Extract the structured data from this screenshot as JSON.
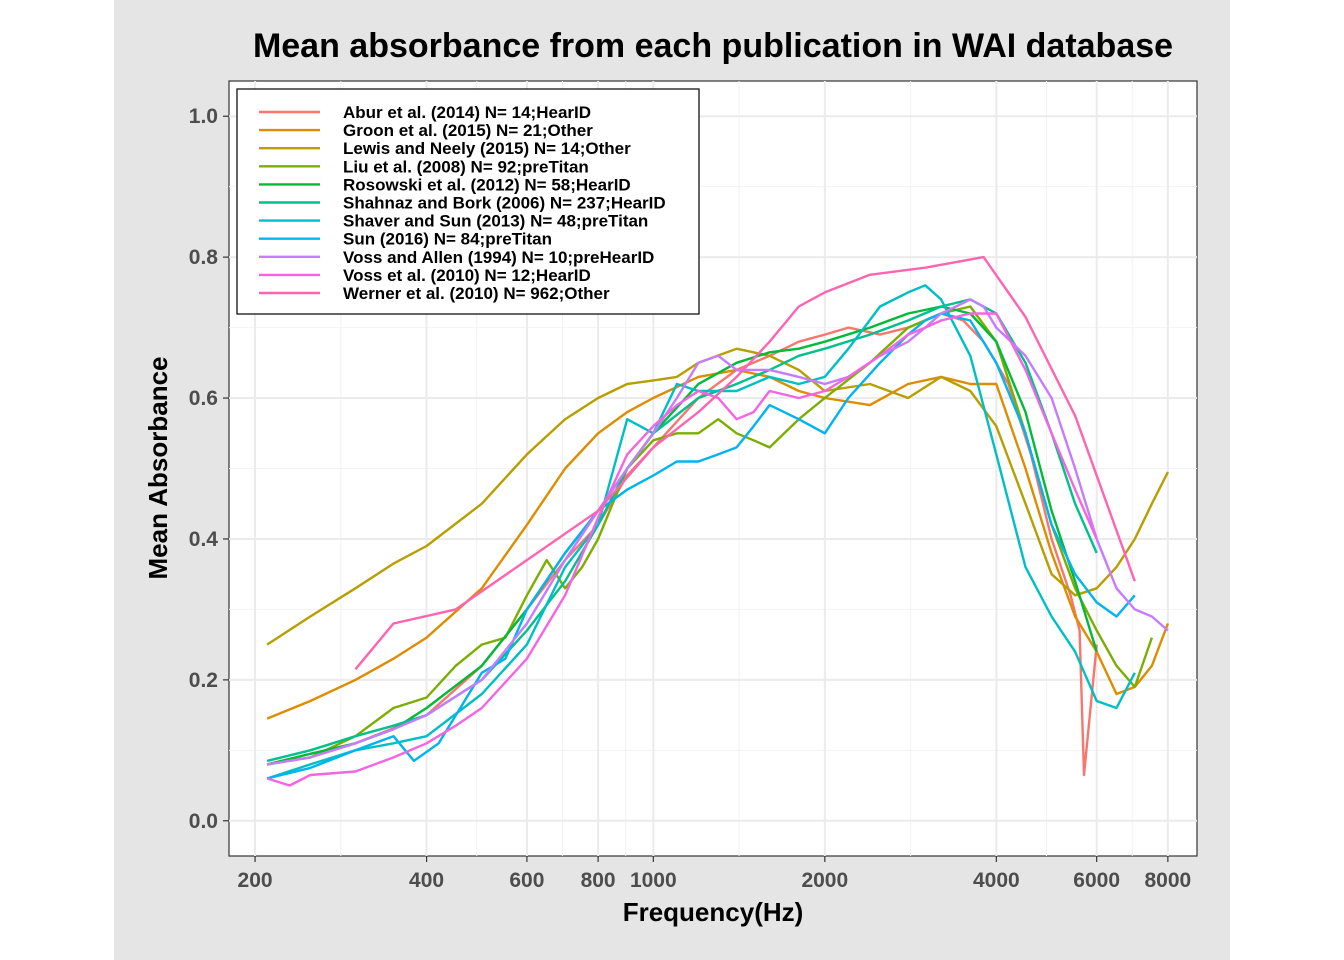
{
  "chart_data": {
    "type": "line",
    "title": "Mean absorbance from each publication in WAI database",
    "xlabel": "Frequency(Hz)",
    "ylabel": "Mean Absorbance",
    "x_scale": "log",
    "xlim": [
      180,
      9000
    ],
    "ylim": [
      -0.05,
      1.05
    ],
    "x_ticks": [
      200,
      400,
      600,
      800,
      1000,
      2000,
      4000,
      6000,
      8000
    ],
    "x_tick_labels": [
      "200",
      "400",
      "600",
      "800",
      "1000",
      "2000",
      "4000",
      "6000",
      "8000"
    ],
    "y_ticks": [
      0.0,
      0.2,
      0.4,
      0.6,
      0.8,
      1.0
    ],
    "y_tick_labels": [
      "0.0",
      "0.2",
      "0.4",
      "0.6",
      "0.8",
      "1.0"
    ],
    "grid": true,
    "legend_position": "top-left",
    "series": [
      {
        "name": "Abur et al. (2014) N= 14;HearID",
        "color": "#F8766D",
        "x": [
          210,
          250,
          300,
          400,
          500,
          600,
          700,
          800,
          900,
          1000,
          1200,
          1400,
          1600,
          1800,
          2000,
          2200,
          2500,
          2800,
          3000,
          3200,
          3500,
          3800,
          4200,
          4600,
          5000,
          5400,
          5600,
          5700,
          6000
        ],
        "y": [
          0.08,
          0.09,
          0.11,
          0.15,
          0.22,
          0.3,
          0.37,
          0.42,
          0.49,
          0.53,
          0.6,
          0.64,
          0.66,
          0.68,
          0.69,
          0.7,
          0.69,
          0.7,
          0.71,
          0.72,
          0.71,
          0.68,
          0.62,
          0.52,
          0.4,
          0.32,
          0.27,
          0.065,
          0.25
        ]
      },
      {
        "name": "Groon et al. (2015) N= 21;Other",
        "color": "#DE8C00",
        "x": [
          210,
          250,
          300,
          350,
          400,
          500,
          600,
          700,
          800,
          900,
          1000,
          1200,
          1400,
          1600,
          1800,
          2000,
          2400,
          2800,
          3200,
          3600,
          4000,
          4500,
          5000,
          5500,
          6000,
          6500,
          7000,
          7500,
          8000
        ],
        "y": [
          0.145,
          0.17,
          0.2,
          0.23,
          0.26,
          0.33,
          0.42,
          0.5,
          0.55,
          0.58,
          0.6,
          0.63,
          0.64,
          0.63,
          0.61,
          0.6,
          0.59,
          0.62,
          0.63,
          0.62,
          0.62,
          0.5,
          0.38,
          0.29,
          0.24,
          0.18,
          0.19,
          0.22,
          0.28
        ]
      },
      {
        "name": "Lewis and Neely (2015) N= 14;Other",
        "color": "#B79F00",
        "x": [
          210,
          250,
          300,
          350,
          400,
          500,
          600,
          700,
          800,
          900,
          1000,
          1100,
          1200,
          1400,
          1600,
          1800,
          2000,
          2400,
          2800,
          3200,
          3600,
          4000,
          4500,
          5000,
          5500,
          6000,
          6500,
          7000,
          7500,
          8000
        ],
        "y": [
          0.25,
          0.29,
          0.33,
          0.365,
          0.39,
          0.45,
          0.52,
          0.57,
          0.6,
          0.62,
          0.625,
          0.63,
          0.65,
          0.67,
          0.66,
          0.64,
          0.61,
          0.62,
          0.6,
          0.63,
          0.61,
          0.56,
          0.45,
          0.35,
          0.32,
          0.33,
          0.36,
          0.4,
          0.45,
          0.495
        ]
      },
      {
        "name": "Liu et al. (2008) N= 92;preTitan",
        "color": "#7CAE00",
        "x": [
          210,
          250,
          300,
          350,
          400,
          450,
          500,
          550,
          600,
          650,
          700,
          750,
          800,
          900,
          1000,
          1100,
          1200,
          1300,
          1400,
          1500,
          1600,
          1800,
          2000,
          2400,
          2800,
          3200,
          3600,
          4000,
          4500,
          5000,
          5500,
          6000,
          6500,
          7000,
          7500
        ],
        "y": [
          0.08,
          0.09,
          0.12,
          0.16,
          0.175,
          0.22,
          0.25,
          0.26,
          0.32,
          0.37,
          0.33,
          0.36,
          0.4,
          0.5,
          0.54,
          0.55,
          0.55,
          0.57,
          0.55,
          0.54,
          0.53,
          0.57,
          0.6,
          0.65,
          0.7,
          0.72,
          0.73,
          0.68,
          0.55,
          0.42,
          0.33,
          0.27,
          0.22,
          0.19,
          0.26
        ]
      },
      {
        "name": "Rosowski et al. (2012) N= 58;HearID",
        "color": "#00BA38",
        "x": [
          210,
          250,
          300,
          350,
          400,
          500,
          600,
          700,
          800,
          900,
          1000,
          1200,
          1400,
          1600,
          1800,
          2000,
          2400,
          2800,
          3200,
          3600,
          4000,
          4500,
          5000,
          5500,
          6000
        ],
        "y": [
          0.08,
          0.095,
          0.11,
          0.13,
          0.16,
          0.22,
          0.3,
          0.38,
          0.44,
          0.5,
          0.55,
          0.62,
          0.65,
          0.665,
          0.67,
          0.68,
          0.7,
          0.72,
          0.73,
          0.72,
          0.68,
          0.58,
          0.44,
          0.34,
          0.24
        ]
      },
      {
        "name": "Shahnaz and Bork (2006) N= 237;HearID",
        "color": "#00C08B",
        "x": [
          210,
          250,
          300,
          350,
          400,
          500,
          600,
          700,
          800,
          900,
          1000,
          1200,
          1400,
          1600,
          1800,
          2000,
          2400,
          2800,
          3200,
          3600,
          4000,
          4500,
          5000,
          5500,
          6000
        ],
        "y": [
          0.085,
          0.1,
          0.12,
          0.135,
          0.15,
          0.2,
          0.27,
          0.34,
          0.42,
          0.5,
          0.55,
          0.6,
          0.62,
          0.64,
          0.66,
          0.67,
          0.69,
          0.71,
          0.73,
          0.74,
          0.72,
          0.65,
          0.55,
          0.45,
          0.38
        ]
      },
      {
        "name": "Shaver and Sun (2013) N= 48;preTitan",
        "color": "#00BFC4",
        "x": [
          210,
          250,
          300,
          350,
          400,
          500,
          600,
          700,
          800,
          900,
          1000,
          1100,
          1200,
          1400,
          1600,
          1800,
          2000,
          2200,
          2500,
          2800,
          3000,
          3200,
          3600,
          4000,
          4500,
          5000,
          5500,
          6000,
          6500,
          7000
        ],
        "y": [
          0.06,
          0.08,
          0.1,
          0.11,
          0.12,
          0.18,
          0.25,
          0.36,
          0.42,
          0.57,
          0.55,
          0.62,
          0.61,
          0.61,
          0.63,
          0.62,
          0.63,
          0.67,
          0.73,
          0.75,
          0.76,
          0.74,
          0.66,
          0.52,
          0.36,
          0.29,
          0.24,
          0.17,
          0.16,
          0.21
        ]
      },
      {
        "name": "Sun (2016) N= 84;preTitan",
        "color": "#00B4F0",
        "x": [
          210,
          250,
          300,
          350,
          380,
          420,
          500,
          550,
          600,
          700,
          800,
          900,
          1000,
          1100,
          1200,
          1300,
          1400,
          1500,
          1600,
          1800,
          2000,
          2200,
          2500,
          2800,
          3000,
          3200,
          3600,
          4000,
          4500,
          5000,
          5500,
          6000,
          6500,
          7000
        ],
        "y": [
          0.06,
          0.075,
          0.1,
          0.12,
          0.085,
          0.11,
          0.21,
          0.23,
          0.3,
          0.38,
          0.44,
          0.47,
          0.49,
          0.51,
          0.51,
          0.52,
          0.53,
          0.56,
          0.59,
          0.57,
          0.55,
          0.6,
          0.65,
          0.69,
          0.71,
          0.72,
          0.71,
          0.65,
          0.55,
          0.42,
          0.35,
          0.31,
          0.29,
          0.32
        ]
      },
      {
        "name": "Voss and Allen (1994) N= 10;preHearID",
        "color": "#C77CFF",
        "x": [
          210,
          250,
          300,
          350,
          400,
          500,
          600,
          700,
          800,
          900,
          1000,
          1100,
          1200,
          1300,
          1400,
          1600,
          1800,
          2000,
          2200,
          2500,
          2800,
          3000,
          3200,
          3400,
          3600,
          3800,
          4000,
          4500,
          5000,
          5500,
          6000,
          6500,
          7000,
          7500,
          8000
        ],
        "y": [
          0.08,
          0.09,
          0.11,
          0.13,
          0.15,
          0.2,
          0.28,
          0.37,
          0.44,
          0.5,
          0.55,
          0.6,
          0.65,
          0.66,
          0.64,
          0.64,
          0.63,
          0.62,
          0.63,
          0.66,
          0.68,
          0.7,
          0.72,
          0.73,
          0.74,
          0.73,
          0.7,
          0.66,
          0.6,
          0.5,
          0.4,
          0.33,
          0.3,
          0.29,
          0.27
        ]
      },
      {
        "name": "Voss et al. (2010) N= 12;HearID",
        "color": "#F564E3",
        "x": [
          210,
          230,
          250,
          300,
          350,
          400,
          450,
          500,
          600,
          700,
          800,
          900,
          1000,
          1100,
          1200,
          1300,
          1400,
          1500,
          1600,
          1800,
          2000,
          2200,
          2500,
          2800,
          3000,
          3200,
          3600,
          4000,
          4500,
          5000,
          5500,
          6000
        ],
        "y": [
          0.06,
          0.05,
          0.065,
          0.07,
          0.09,
          0.11,
          0.135,
          0.16,
          0.23,
          0.32,
          0.43,
          0.52,
          0.56,
          0.59,
          0.61,
          0.6,
          0.57,
          0.58,
          0.61,
          0.6,
          0.61,
          0.63,
          0.66,
          0.69,
          0.7,
          0.71,
          0.72,
          0.72,
          0.64,
          0.55,
          0.47,
          0.4
        ]
      },
      {
        "name": "Werner et al. (2010) N= 962;Other",
        "color": "#FF64B0",
        "x": [
          300,
          350,
          450,
          600,
          800,
          1000,
          1200,
          1400,
          1600,
          1800,
          2000,
          2400,
          3000,
          3800,
          4500,
          5500,
          7000
        ],
        "y": [
          0.215,
          0.28,
          0.3,
          0.37,
          0.44,
          0.53,
          0.58,
          0.63,
          0.68,
          0.73,
          0.75,
          0.775,
          0.785,
          0.8,
          0.715,
          0.575,
          0.34
        ]
      }
    ]
  }
}
